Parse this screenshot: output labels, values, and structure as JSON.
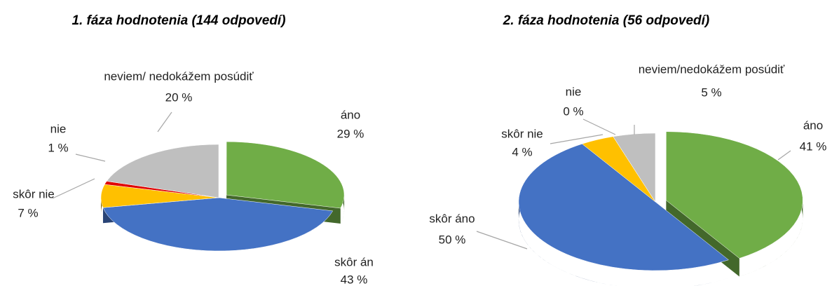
{
  "chart_data": [
    {
      "type": "pie3d",
      "title": "1. fáza hodnotenia (144 odpovedí)",
      "categories": [
        "áno",
        "skôr án",
        "skôr nie",
        "nie",
        "neviem/ nedokážem posúdiť"
      ],
      "values": [
        29,
        43,
        7,
        1,
        20
      ],
      "value_labels": [
        "29 %",
        "43 %",
        "7 %",
        "1 %",
        "20 %"
      ],
      "colors": [
        "#70ad47",
        "#4472c4",
        "#ffc000",
        "#e00000",
        "#bfbfbf"
      ]
    },
    {
      "type": "pie3d",
      "title": "2. fáza hodnotenia (56 odpovedí)",
      "categories": [
        "áno",
        "skôr áno",
        "skôr nie",
        "nie",
        "neviem/nedokážem posúdiť"
      ],
      "values": [
        41,
        50,
        4,
        0,
        5
      ],
      "value_labels": [
        "41 %",
        "50 %",
        "4 %",
        "0 %",
        "5 %"
      ],
      "colors": [
        "#70ad47",
        "#4472c4",
        "#ffc000",
        "#c00000",
        "#bfbfbf"
      ]
    }
  ]
}
